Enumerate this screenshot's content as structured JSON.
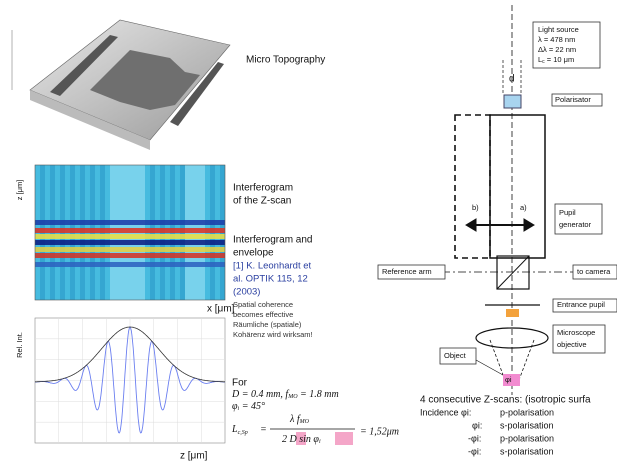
{
  "topography": {
    "label": "Micro Topography"
  },
  "interferogram": {
    "y_label": "z [μm]",
    "x_label": "x [μm]",
    "caption": [
      "Interferogram",
      "of the Z-scan"
    ]
  },
  "envelope": {
    "title": [
      "Interferogram and",
      "envelope"
    ],
    "reference": [
      "[1] K. Leonhardt et",
      "al. OPTIK 115, 12",
      "(2003)"
    ],
    "notes": [
      "Spatial coherence",
      "becomes effective",
      "Räumliche (spatiale)",
      "Kohärenz wird wirksam!"
    ],
    "y_label": "Rel. Int.",
    "x_label": "z [μm]"
  },
  "formula": {
    "intro": "For",
    "line1": "D = 0.4 mm, f",
    "line1_sub": "MO",
    "line1_end": " = 1.8 mm",
    "line2": "φ",
    "line2_sub": "i",
    "line2_end": " = 45°",
    "lhs": "L",
    "lhs_sub": "c,Sp",
    "eq": "=",
    "num": "λ   f",
    "num_sub": "MO",
    "den": "2 D  sin φ",
    "den_sub": "i",
    "result": "= 1,52μm"
  },
  "setup": {
    "light_source": [
      "Light source",
      "λ = 478 nm",
      "Δλ = 22 nm",
      "L",
      "c",
      " = 10 μm"
    ],
    "d": "d",
    "polarisator": "Polarisator",
    "b": "b)",
    "a": "a)",
    "pupil_generator": [
      "Pupil",
      "generator"
    ],
    "reference_arm": "Reference arm",
    "to_camera": "to camera",
    "entrance_pupil": "Entrance pupil",
    "objective": [
      "Microscope",
      "objective"
    ],
    "object": "Object",
    "phi": "φi"
  },
  "scans": {
    "title": "4 consecutive Z-scans: (isotropic surfa",
    "rows": [
      [
        "Incidence φi:",
        "p-polarisation"
      ],
      [
        "φi:",
        "s-polarisation"
      ],
      [
        "-φi:",
        "p-polarisation"
      ],
      [
        "-φi:",
        "s-polarisation"
      ]
    ]
  }
}
